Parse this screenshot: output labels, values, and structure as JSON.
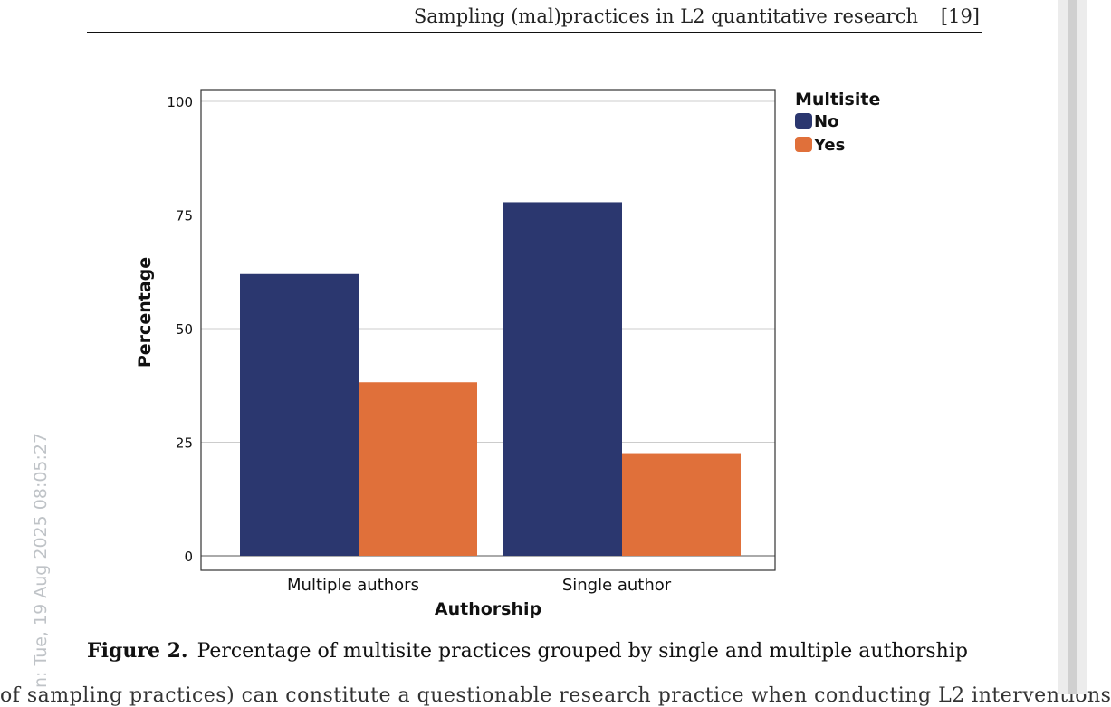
{
  "header": {
    "title": "Sampling (mal)practices in L2 quantitative research",
    "page_number": "[19]"
  },
  "chart_data": {
    "type": "bar",
    "xlabel": "Authorship",
    "ylabel": "Percentage",
    "categories": [
      "Multiple authors",
      "Single author"
    ],
    "series": [
      {
        "name": "No",
        "values": [
          62.0,
          77.8
        ],
        "color": "#2b376f"
      },
      {
        "name": "Yes",
        "values": [
          38.2,
          22.6
        ],
        "color": "#e0703a"
      }
    ],
    "ylim": [
      0,
      100
    ],
    "yticks": [
      0,
      25,
      50,
      75,
      100
    ],
    "legend": {
      "title": "Multisite",
      "placement": "right"
    },
    "grid": true
  },
  "caption": {
    "label": "Figure 2.",
    "text": "Percentage of multisite practices grouped by single and multiple authorship"
  },
  "watermark": {
    "timestamp": "n: Tue, 19 Aug 2025 08:05:27"
  },
  "cut_text": "of sampling practices) can constitute a questionable research practice when conducting L2 interventions"
}
